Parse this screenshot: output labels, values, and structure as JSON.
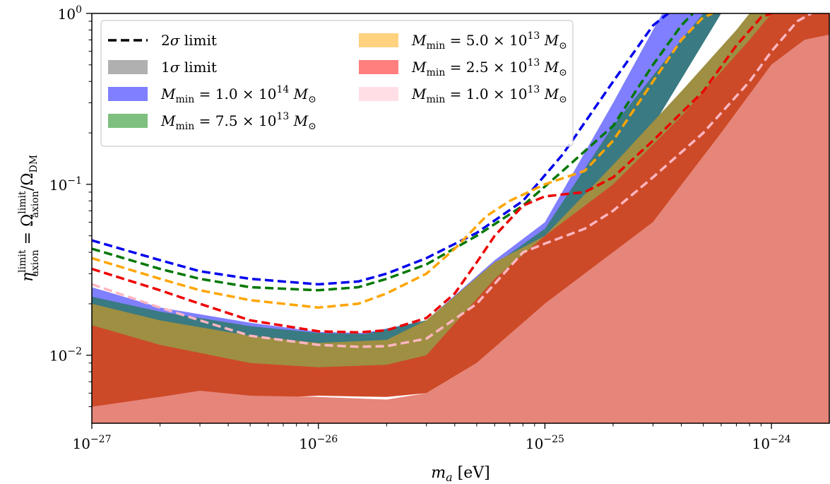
{
  "chart_data": {
    "type": "area",
    "xscale": "log",
    "yscale": "log",
    "xlim": [
      1e-27,
      1.8e-24
    ],
    "ylim": [
      0.004,
      1.0
    ],
    "x_ticks": [
      {
        "value": 1e-27,
        "base": "10",
        "exp": "−27"
      },
      {
        "value": 1e-26,
        "base": "10",
        "exp": "−26"
      },
      {
        "value": 1e-25,
        "base": "10",
        "exp": "−25"
      },
      {
        "value": 1e-24,
        "base": "10",
        "exp": "−24"
      }
    ],
    "y_ticks": [
      {
        "value": 0.01,
        "base": "10",
        "exp": "−2"
      },
      {
        "value": 0.1,
        "base": "10",
        "exp": "−1"
      },
      {
        "value": 1.0,
        "base": "10",
        "exp": "0"
      }
    ],
    "xlabel": {
      "main": "m",
      "sub": "a",
      "unit": " [eV]"
    },
    "ylabel": {
      "eta": "η",
      "sup": "limit",
      "sub": "axion",
      "eq": " = Ω",
      "sup2": "limit",
      "sub2": "axion",
      "rest": "/Ω",
      "sub3": "DM"
    },
    "legend": {
      "placement": "upper-left",
      "entries": [
        {
          "kind": "line",
          "color": "#000000",
          "pre": "2",
          "sym": "σ",
          "post": " limit"
        },
        {
          "kind": "patch",
          "color": "#b0b0b0",
          "pre": "1",
          "sym": "σ",
          "post": " limit"
        },
        {
          "kind": "patch",
          "color": "#7f7fff",
          "label": "M_min = 1.0 × 10^14 M_⊙",
          "mant": "1.0",
          "exp": "14"
        },
        {
          "kind": "patch",
          "color": "#7fbf7f",
          "label": "M_min = 7.5 × 10^13 M_⊙",
          "mant": "7.5",
          "exp": "13"
        },
        {
          "kind": "patch",
          "color": "#ffd27f",
          "label": "M_min = 5.0 × 10^13 M_⊙",
          "mant": "5.0",
          "exp": "13"
        },
        {
          "kind": "patch",
          "color": "#ff7f7f",
          "label": "M_min = 2.5 × 10^13 M_⊙",
          "mant": "2.5",
          "exp": "13"
        },
        {
          "kind": "patch",
          "color": "#ffdfe5",
          "label": "M_min = 1.0 × 10^13 M_⊙",
          "mant": "1.0",
          "exp": "13"
        }
      ]
    },
    "fill_layers": [
      {
        "name": "M_min = 1.0 × 10^14 M_⊙",
        "color": "#7f7fff",
        "opacity": 1,
        "lower": [
          [
            1e-27,
            0.009
          ],
          [
            1e-26,
            0.0085
          ],
          [
            3e-26,
            0.0095
          ],
          [
            1e-25,
            0.045
          ],
          [
            3e-25,
            0.3
          ],
          [
            5e-25,
            1.0
          ],
          [
            1.8e-24,
            1.0
          ]
        ],
        "upper": [
          [
            1e-27,
            0.025
          ],
          [
            2e-27,
            0.019
          ],
          [
            5e-27,
            0.0155
          ],
          [
            1e-26,
            0.0137
          ],
          [
            1.6e-26,
            0.0135
          ],
          [
            3e-26,
            0.016
          ],
          [
            6e-26,
            0.036
          ],
          [
            1e-25,
            0.06
          ],
          [
            2e-25,
            0.3
          ],
          [
            3e-25,
            0.8
          ],
          [
            3.3e-25,
            1.0
          ],
          [
            1.8e-24,
            1.0
          ]
        ]
      },
      {
        "name": "M_min = 7.5 × 10^13 M_⊙",
        "color": "#3a7a82",
        "opacity": 1,
        "lower": [
          [
            1e-27,
            0.009
          ],
          [
            1e-26,
            0.0085
          ],
          [
            3e-26,
            0.0095
          ],
          [
            1e-25,
            0.045
          ],
          [
            3e-25,
            0.22
          ],
          [
            6e-25,
            1.0
          ],
          [
            1.8e-24,
            1.0
          ]
        ],
        "upper": [
          [
            1e-27,
            0.022
          ],
          [
            2e-27,
            0.018
          ],
          [
            5e-27,
            0.0148
          ],
          [
            1e-26,
            0.0135
          ],
          [
            1.6e-26,
            0.0133
          ],
          [
            3e-26,
            0.016
          ],
          [
            6e-26,
            0.034
          ],
          [
            1e-25,
            0.055
          ],
          [
            2e-25,
            0.22
          ],
          [
            4e-25,
            0.7
          ],
          [
            5e-25,
            1.0
          ],
          [
            1.8e-24,
            1.0
          ]
        ]
      },
      {
        "name": "M_min = 5.0 × 10^13 M_⊙",
        "color": "#9e8f42",
        "opacity": 1,
        "lower": [
          [
            1e-27,
            0.006
          ],
          [
            1e-26,
            0.0058
          ],
          [
            2e-26,
            0.006
          ],
          [
            3e-26,
            0.0065
          ],
          [
            6e-26,
            0.016
          ],
          [
            1e-25,
            0.035
          ],
          [
            3e-25,
            0.1
          ],
          [
            6e-25,
            0.35
          ],
          [
            1e-24,
            0.85
          ],
          [
            1.15e-24,
            1.0
          ],
          [
            1.8e-24,
            1.0
          ]
        ],
        "upper": [
          [
            1e-27,
            0.02
          ],
          [
            2e-27,
            0.016
          ],
          [
            5e-27,
            0.013
          ],
          [
            1e-26,
            0.0118
          ],
          [
            2e-26,
            0.0123
          ],
          [
            3e-26,
            0.016
          ],
          [
            6e-26,
            0.035
          ],
          [
            1e-25,
            0.05
          ],
          [
            2e-25,
            0.13
          ],
          [
            4e-25,
            0.35
          ],
          [
            7e-25,
            0.8
          ],
          [
            8e-25,
            1.0
          ],
          [
            1.8e-24,
            1.0
          ]
        ]
      },
      {
        "name": "M_min = 2.5 × 10^13 M_⊙",
        "color": "#cd4a28",
        "opacity": 1,
        "lower": [
          [
            1e-27,
            0.005
          ],
          [
            1e-26,
            0.0058
          ],
          [
            2e-26,
            0.0057
          ],
          [
            3e-26,
            0.006
          ],
          [
            5e-26,
            0.009
          ],
          [
            1e-25,
            0.02
          ],
          [
            3e-25,
            0.06
          ],
          [
            6e-25,
            0.2
          ],
          [
            1e-24,
            0.5
          ],
          [
            1.4e-24,
            0.7
          ],
          [
            1.8e-24,
            0.75
          ]
        ],
        "upper": [
          [
            1e-27,
            0.015
          ],
          [
            2e-27,
            0.0115
          ],
          [
            5e-27,
            0.009
          ],
          [
            1e-26,
            0.0085
          ],
          [
            2e-26,
            0.0088
          ],
          [
            3e-26,
            0.01
          ],
          [
            6e-26,
            0.028
          ],
          [
            1e-25,
            0.05
          ],
          [
            2e-25,
            0.1
          ],
          [
            4e-25,
            0.25
          ],
          [
            8e-25,
            0.7
          ],
          [
            1e-24,
            1.0
          ],
          [
            1.8e-24,
            1.0
          ]
        ]
      },
      {
        "name": "M_min = 1.0 × 10^13 M_⊙",
        "color": "#e6857a",
        "opacity": 1,
        "lower": [
          [
            1e-27,
            0.004
          ],
          [
            1.8e-24,
            0.004
          ]
        ],
        "upper": [
          [
            1e-27,
            0.005
          ],
          [
            2e-27,
            0.0057
          ],
          [
            3e-27,
            0.0062
          ],
          [
            5e-27,
            0.0058
          ],
          [
            1e-26,
            0.0057
          ],
          [
            2e-26,
            0.0055
          ],
          [
            3e-26,
            0.006
          ],
          [
            5e-26,
            0.009
          ],
          [
            1e-25,
            0.02
          ],
          [
            3e-25,
            0.06
          ],
          [
            6e-25,
            0.2
          ],
          [
            1e-24,
            0.5
          ],
          [
            1.4e-24,
            0.7
          ],
          [
            1.8e-24,
            0.75
          ]
        ]
      }
    ],
    "series": [
      {
        "name": "M_min = 1.0 × 10^14 M_⊙",
        "color": "#0000ee",
        "x": [
          1e-27,
          2e-27,
          3e-27,
          5e-27,
          1e-26,
          1.5e-26,
          2e-26,
          3e-26,
          5e-26,
          8e-26,
          1.2e-25,
          2e-25,
          3e-25,
          3.5e-25
        ],
        "y": [
          0.047,
          0.036,
          0.031,
          0.028,
          0.026,
          0.027,
          0.03,
          0.037,
          0.052,
          0.08,
          0.15,
          0.4,
          0.85,
          1.0
        ]
      },
      {
        "name": "M_min = 7.5 × 10^13 M_⊙",
        "color": "#007700",
        "x": [
          1e-27,
          2e-27,
          3e-27,
          5e-27,
          1e-26,
          1.5e-26,
          2e-26,
          3e-26,
          5e-26,
          8e-26,
          1.2e-25,
          2e-25,
          3e-25,
          4e-25,
          4.5e-25
        ],
        "y": [
          0.042,
          0.032,
          0.028,
          0.025,
          0.024,
          0.025,
          0.028,
          0.034,
          0.05,
          0.075,
          0.12,
          0.22,
          0.5,
          0.85,
          1.0
        ]
      },
      {
        "name": "M_min = 5.0 × 10^13 M_⊙",
        "color": "#ffa500",
        "x": [
          1e-27,
          2e-27,
          3e-27,
          5e-27,
          1e-26,
          1.5e-26,
          2e-26,
          3e-26,
          4e-26,
          5.5e-26,
          7e-26,
          1e-25,
          1.5e-25,
          2e-25,
          3e-25,
          4e-25,
          5e-25,
          5.5e-25
        ],
        "y": [
          0.037,
          0.028,
          0.024,
          0.021,
          0.019,
          0.02,
          0.023,
          0.03,
          0.042,
          0.065,
          0.08,
          0.1,
          0.12,
          0.18,
          0.4,
          0.7,
          0.95,
          1.0
        ]
      },
      {
        "name": "M_min = 2.5 × 10^13 M_⊙",
        "color": "#ee0000",
        "x": [
          1e-27,
          2e-27,
          3e-27,
          5e-27,
          1e-26,
          1.5e-26,
          2e-26,
          3e-26,
          4e-26,
          5e-26,
          6e-26,
          8e-26,
          1e-25,
          1.5e-25,
          2e-25,
          3e-25,
          5e-25,
          7e-25,
          9e-25,
          1e-24
        ],
        "y": [
          0.032,
          0.024,
          0.02,
          0.016,
          0.0138,
          0.0136,
          0.014,
          0.0165,
          0.023,
          0.035,
          0.05,
          0.075,
          0.085,
          0.09,
          0.11,
          0.18,
          0.35,
          0.65,
          0.95,
          1.0
        ]
      },
      {
        "name": "M_min = 1.0 × 10^13 M_⊙",
        "color": "#ffb6c1",
        "x": [
          1e-27,
          2e-27,
          3e-27,
          5e-27,
          1e-26,
          1.5e-26,
          2e-26,
          3e-26,
          5e-26,
          8e-26,
          1e-25,
          1.5e-25,
          2e-25,
          3e-25,
          5e-25,
          8e-25,
          1e-24,
          1.3e-24,
          1.5e-24
        ],
        "y": [
          0.026,
          0.019,
          0.016,
          0.013,
          0.0115,
          0.0112,
          0.0113,
          0.0125,
          0.02,
          0.04,
          0.045,
          0.055,
          0.07,
          0.11,
          0.2,
          0.4,
          0.6,
          0.9,
          1.0
        ]
      }
    ]
  }
}
